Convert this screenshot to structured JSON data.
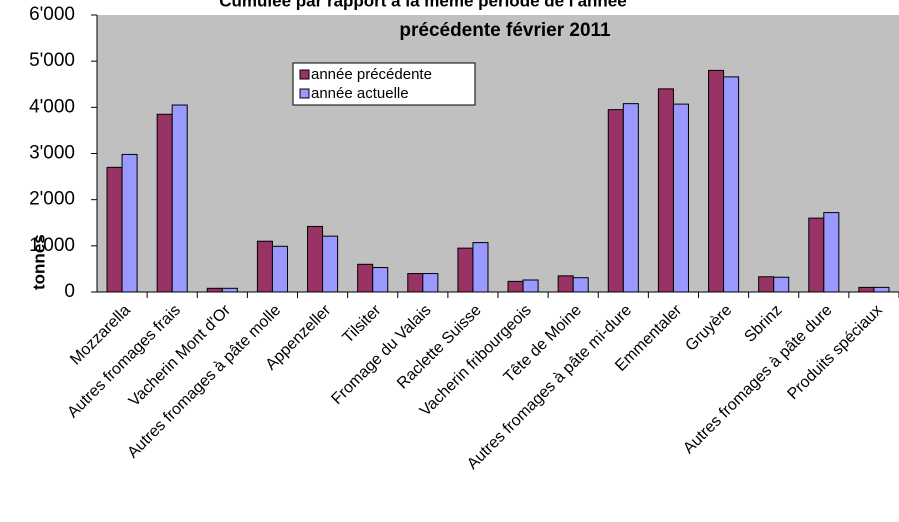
{
  "chart_data": {
    "type": "bar",
    "title": "Cumulée par rapport à la même période de l'année",
    "subtitle": "précédente   février 2011",
    "y_label": "tonnes",
    "categories": [
      "Mozzarella",
      "Autres fromages frais",
      "Vacherin Mont d'Or",
      "Autres fromages à pâte molle",
      "Appenzeller",
      "Tilsiter",
      "Fromage du Valais",
      "Raclette Suisse",
      "Vacherin fribourgeois",
      "Tête de Moine",
      "Autres fromages à pâte mi-dure",
      "Emmentaler",
      "Gruyère",
      "Sbrinz",
      "Autres fromages à pâte dure",
      "Produits spéciaux"
    ],
    "series": [
      {
        "name": "année précédente",
        "color": "#993366",
        "values": [
          2700,
          3850,
          80,
          1100,
          1420,
          600,
          400,
          950,
          230,
          350,
          3950,
          4400,
          4800,
          330,
          1600,
          100
        ]
      },
      {
        "name": "année actuelle",
        "color": "#9999ff",
        "values": [
          2980,
          4050,
          80,
          990,
          1210,
          530,
          400,
          1070,
          260,
          310,
          4080,
          4070,
          4660,
          320,
          1720,
          100
        ]
      }
    ],
    "ylim": [
      0,
      6000
    ],
    "yticks": [
      0,
      {
        "value": 1000,
        "label": "1'000"
      },
      {
        "value": 2000,
        "label": "2'000"
      },
      {
        "value": 3000,
        "label": "3'000"
      },
      {
        "value": 4000,
        "label": "4'000"
      },
      {
        "value": 5000,
        "label": "5'000"
      },
      {
        "value": 6000,
        "label": "6'000"
      }
    ],
    "legend": "top-left"
  }
}
